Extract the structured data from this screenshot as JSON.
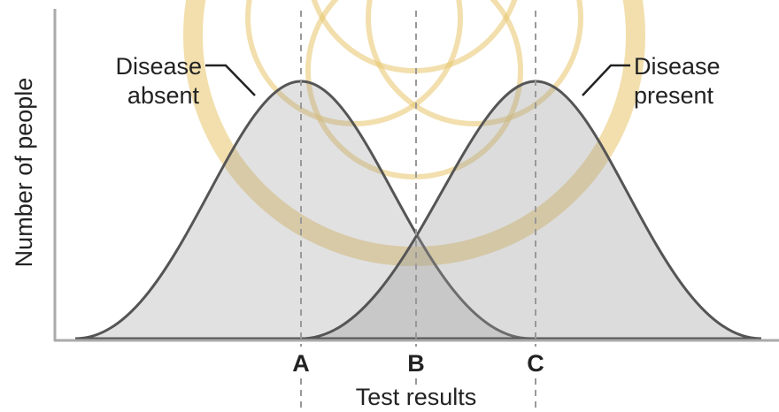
{
  "annotations": [
    {
      "lines": [
        "Disease",
        "absent"
      ]
    },
    {
      "lines": [
        "Disease",
        "present"
      ]
    }
  ],
  "axes": {
    "y_label": "Number of people",
    "x_label": "Test results"
  },
  "markers": [
    "A",
    "B",
    "C"
  ]
}
